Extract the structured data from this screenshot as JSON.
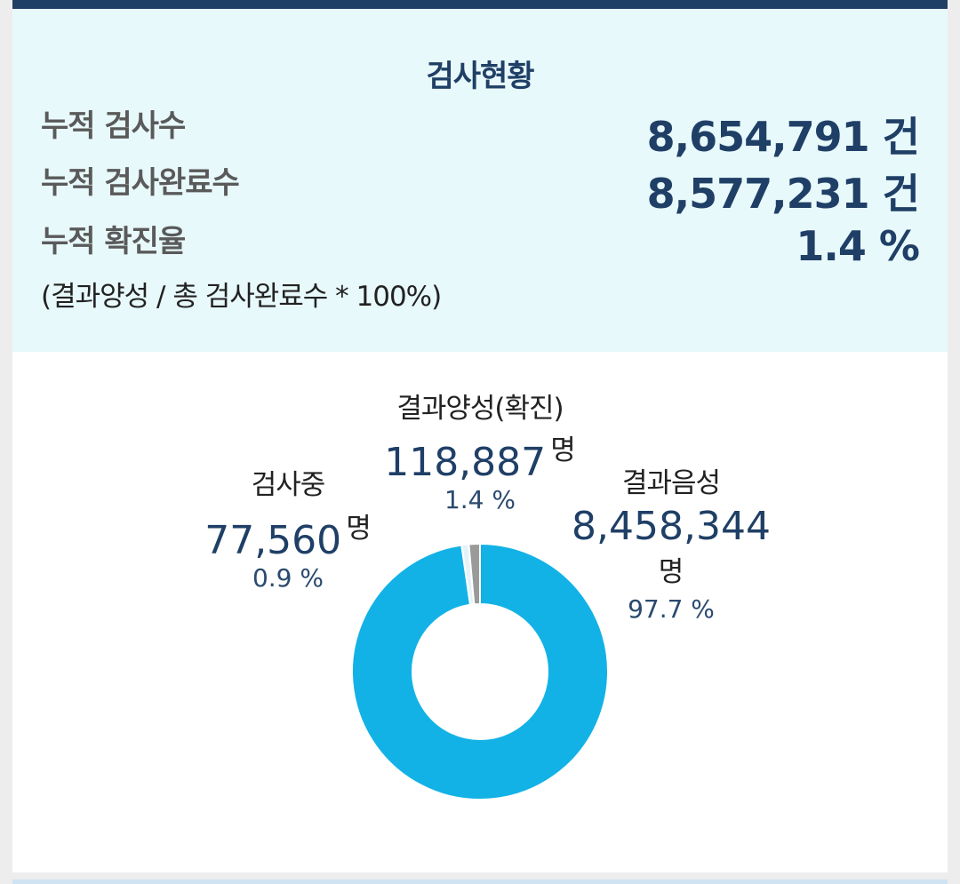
{
  "summary": {
    "title": "검사현황",
    "rows": [
      {
        "label": "누적 검사수",
        "value": "8,654,791 건"
      },
      {
        "label": "누적 검사완료수",
        "value": "8,577,231 건"
      },
      {
        "label": "누적 확진율",
        "value": "1.4 %"
      }
    ],
    "note": "(결과양성 / 총 검사완료수 * 100%)"
  },
  "chart_data": {
    "type": "pie",
    "slices": [
      {
        "name": "결과음성",
        "count": "8,458,344",
        "unit": "명",
        "percent_label": "97.7 %",
        "value": 97.7,
        "color": "#12b2e6"
      },
      {
        "name": "검사중",
        "count": "77,560",
        "unit": "명",
        "percent_label": "0.9 %",
        "value": 0.9,
        "color": "#e3f4f8"
      },
      {
        "name": "결과양성(확진)",
        "count": "118,887",
        "unit": "명",
        "percent_label": "1.4 %",
        "value": 1.4,
        "color": "#9a9a9a"
      }
    ]
  }
}
